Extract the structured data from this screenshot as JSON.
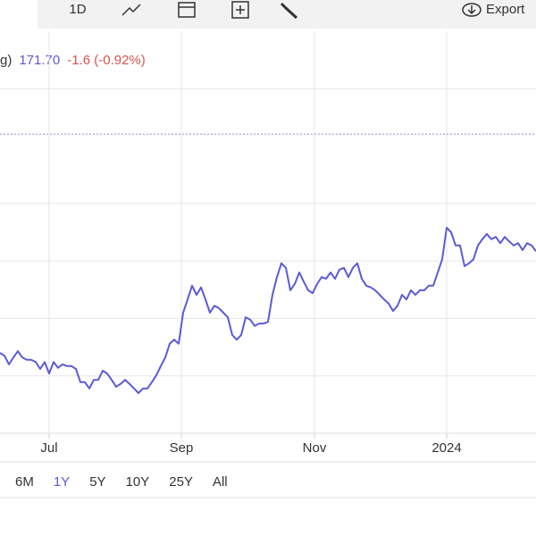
{
  "toolbar": {
    "interval": "1D",
    "export": "Export"
  },
  "chart_data": {
    "type": "line",
    "legend": {
      "label": "g)",
      "last": "171.70",
      "change": "-1.6 (-0.92%)"
    },
    "x": [
      0,
      1,
      2,
      3,
      4,
      5,
      6,
      7,
      8,
      9,
      10,
      11,
      12,
      13,
      14,
      15,
      16,
      17,
      18,
      19,
      20,
      21,
      22,
      23,
      24,
      25,
      26,
      27,
      28,
      29,
      30,
      31,
      32,
      33,
      34,
      35,
      36,
      37,
      38,
      39,
      40,
      41,
      42,
      43,
      44,
      45,
      46,
      47,
      48,
      49,
      50,
      51,
      52,
      53,
      54,
      55,
      56,
      57,
      58,
      59,
      60,
      61,
      62,
      63,
      64,
      65,
      66,
      67,
      68,
      69,
      70,
      71,
      72,
      73,
      74,
      75,
      76,
      77,
      78,
      79,
      80,
      81,
      82,
      83,
      84,
      85,
      86,
      87,
      88,
      89,
      90,
      91,
      92,
      93,
      94,
      95,
      96,
      97,
      98,
      99,
      100,
      101,
      102,
      103,
      104,
      105,
      106,
      107,
      108,
      109,
      110,
      111,
      112,
      113,
      114,
      115,
      116,
      117,
      118,
      119,
      120
    ],
    "series": [
      {
        "color": "#5b5bd6",
        "values": [
          154.0,
          153.5,
          152.0,
          153.2,
          154.3,
          153.2,
          152.8,
          152.8,
          152.4,
          151.2,
          152.4,
          150.4,
          152.4,
          151.4,
          152.0,
          151.7,
          151.7,
          151.2,
          148.9,
          148.9,
          147.8,
          149.3,
          149.3,
          150.9,
          150.4,
          149.3,
          148.1,
          148.6,
          149.3,
          148.6,
          147.8,
          147.0,
          147.8,
          147.8,
          148.9,
          150.1,
          151.7,
          153.2,
          155.6,
          156.3,
          155.6,
          161.0,
          163.3,
          165.7,
          164.1,
          165.4,
          163.3,
          161.0,
          162.2,
          161.8,
          161.0,
          160.2,
          157.1,
          156.3,
          157.1,
          160.2,
          159.8,
          158.7,
          159.1,
          159.1,
          159.4,
          164.1,
          167.2,
          169.6,
          168.8,
          164.9,
          166.0,
          168.0,
          166.4,
          164.9,
          164.4,
          166.0,
          167.2,
          166.9,
          168.0,
          166.9,
          168.5,
          168.8,
          167.2,
          168.8,
          169.6,
          166.9,
          165.7,
          165.4,
          164.9,
          164.1,
          163.3,
          162.6,
          161.3,
          162.2,
          164.1,
          163.3,
          164.9,
          164.1,
          164.9,
          164.9,
          165.7,
          165.7,
          168.0,
          170.3,
          175.8,
          175.0,
          172.7,
          172.7,
          169.1,
          169.6,
          170.3,
          172.7,
          173.8,
          174.7,
          173.8,
          174.2,
          173.1,
          174.2,
          173.4,
          172.7,
          173.1,
          171.9,
          173.1,
          172.7,
          171.7
        ]
      }
    ],
    "xlim": [
      0,
      120
    ],
    "xticks": [
      {
        "value": 11,
        "label": "Jul"
      },
      {
        "value": 40.6,
        "label": "Sep"
      },
      {
        "value": 70.4,
        "label": "Nov"
      },
      {
        "value": 100,
        "label": "2024"
      }
    ],
    "ylim": [
      140,
      210
    ],
    "yticks": [
      150,
      160,
      170,
      180,
      200
    ],
    "reference": 192.1,
    "grid": true
  },
  "ranges": [
    "6M",
    "1Y",
    "5Y",
    "10Y",
    "25Y",
    "All"
  ],
  "selected_range": 1
}
